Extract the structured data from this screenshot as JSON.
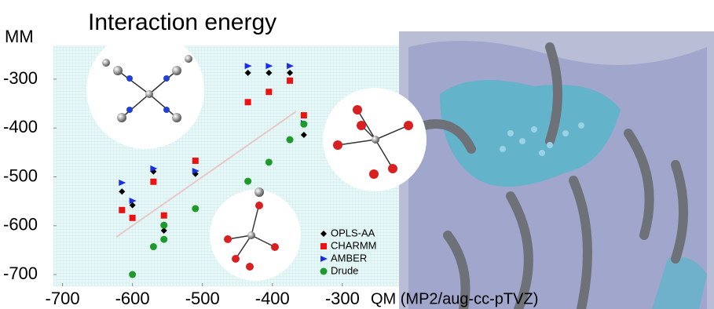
{
  "chart_data": {
    "type": "scatter",
    "title": "Interaction energy",
    "y_label": "MM",
    "x_label": "QM (MP2/aug-cc-pTVZ)",
    "xlim": [
      -713,
      -219
    ],
    "ylim": [
      -724,
      -231
    ],
    "xticks": [
      -700,
      -600,
      -500,
      -400,
      -300
    ],
    "yticks": [
      -700,
      -600,
      -500,
      -400,
      -300
    ],
    "legend": "lower right",
    "series": [
      {
        "name": "OPLS-AA",
        "color": "#000000",
        "marker": "diamond",
        "x": [
          -615,
          -600,
          -570,
          -555,
          -510,
          -435,
          -405,
          -375,
          -355
        ],
        "values": [
          -530,
          -558,
          -489,
          -610,
          -494,
          -287,
          -287,
          -287,
          -414
        ]
      },
      {
        "name": "CHARMM",
        "color": "#ee1111",
        "marker": "square",
        "x": [
          -615,
          -600,
          -570,
          -555,
          -510,
          -435,
          -405,
          -375,
          -355
        ],
        "values": [
          -568,
          -584,
          -510,
          -579,
          -467,
          -347,
          -326,
          -303,
          -374
        ]
      },
      {
        "name": "AMBER",
        "color": "#1a2ee6",
        "marker": "triangle",
        "x": [
          -615,
          -600,
          -570,
          -510,
          -435,
          -405,
          -375,
          -355
        ],
        "values": [
          -512,
          -549,
          -483,
          -488,
          -273,
          -273,
          -273,
          -390
        ]
      },
      {
        "name": "Drude",
        "color": "#1d9a2a",
        "marker": "circle",
        "x": [
          -600,
          -570,
          -555,
          -555,
          -510,
          -435,
          -405,
          -375,
          -355
        ],
        "values": [
          -700,
          -643,
          -599,
          -628,
          -565,
          -509,
          -470,
          -424,
          -392
        ]
      }
    ]
  }
}
